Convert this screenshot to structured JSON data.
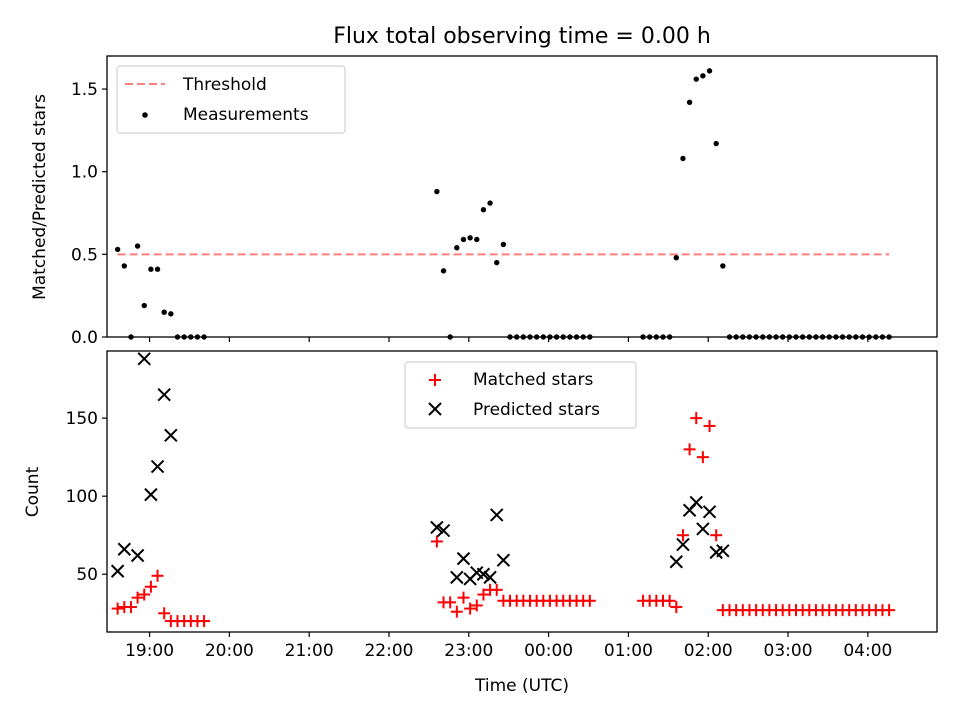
{
  "chart_data": [
    {
      "type": "scatter",
      "title": "Flux total observing time = 0.00 h",
      "xlabel": "",
      "ylabel": "Matched/Predicted stars",
      "ylim": [
        0,
        1.7
      ],
      "xlim": [
        "18:28",
        "04:52"
      ],
      "yticks": [
        0.0,
        0.5,
        1.0,
        1.5
      ],
      "ytick_labels": [
        "0.0",
        "0.5",
        "1.0",
        "1.5"
      ],
      "xticks": [
        "19:00",
        "20:00",
        "21:00",
        "22:00",
        "23:00",
        "00:00",
        "01:00",
        "02:00",
        "03:00",
        "04:00"
      ],
      "xtick_labels_visible": false,
      "grid": false,
      "legend_position": "upper-left",
      "threshold": {
        "name": "Threshold",
        "value": 0.5,
        "x_range": [
          "18:36",
          "04:16"
        ],
        "color": "#ff7f7f",
        "style": "dashed"
      },
      "series": [
        {
          "name": "Measurements",
          "color": "#000000",
          "marker": "dot",
          "points": [
            [
              "18:36",
              0.53
            ],
            [
              "18:41",
              0.43
            ],
            [
              "18:46",
              0.0
            ],
            [
              "18:51",
              0.55
            ],
            [
              "18:56",
              0.19
            ],
            [
              "19:01",
              0.41
            ],
            [
              "19:06",
              0.41
            ],
            [
              "19:11",
              0.15
            ],
            [
              "19:16",
              0.14
            ],
            [
              "19:21",
              0.0
            ],
            [
              "19:26",
              0.0
            ],
            [
              "19:31",
              0.0
            ],
            [
              "19:36",
              0.0
            ],
            [
              "19:41",
              0.0
            ],
            [
              "22:36",
              0.88
            ],
            [
              "22:41",
              0.4
            ],
            [
              "22:46",
              0.0
            ],
            [
              "22:51",
              0.54
            ],
            [
              "22:56",
              0.59
            ],
            [
              "23:01",
              0.6
            ],
            [
              "23:06",
              0.59
            ],
            [
              "23:11",
              0.77
            ],
            [
              "23:16",
              0.81
            ],
            [
              "23:21",
              0.45
            ],
            [
              "23:26",
              0.56
            ],
            [
              "23:31",
              0.0
            ],
            [
              "23:36",
              0.0
            ],
            [
              "23:41",
              0.0
            ],
            [
              "23:46",
              0.0
            ],
            [
              "23:51",
              0.0
            ],
            [
              "23:56",
              0.0
            ],
            [
              "00:01",
              0.0
            ],
            [
              "00:06",
              0.0
            ],
            [
              "00:11",
              0.0
            ],
            [
              "00:16",
              0.0
            ],
            [
              "00:21",
              0.0
            ],
            [
              "00:26",
              0.0
            ],
            [
              "00:31",
              0.0
            ],
            [
              "01:11",
              0.0
            ],
            [
              "01:16",
              0.0
            ],
            [
              "01:21",
              0.0
            ],
            [
              "01:26",
              0.0
            ],
            [
              "01:31",
              0.0
            ],
            [
              "01:36",
              0.48
            ],
            [
              "01:41",
              1.08
            ],
            [
              "01:46",
              1.42
            ],
            [
              "01:51",
              1.56
            ],
            [
              "01:56",
              1.58
            ],
            [
              "02:01",
              1.61
            ],
            [
              "02:06",
              1.17
            ],
            [
              "02:11",
              0.43
            ],
            [
              "02:16",
              0.0
            ],
            [
              "02:21",
              0.0
            ],
            [
              "02:26",
              0.0
            ],
            [
              "02:31",
              0.0
            ],
            [
              "02:36",
              0.0
            ],
            [
              "02:41",
              0.0
            ],
            [
              "02:46",
              0.0
            ],
            [
              "02:51",
              0.0
            ],
            [
              "02:56",
              0.0
            ],
            [
              "03:01",
              0.0
            ],
            [
              "03:06",
              0.0
            ],
            [
              "03:11",
              0.0
            ],
            [
              "03:16",
              0.0
            ],
            [
              "03:21",
              0.0
            ],
            [
              "03:26",
              0.0
            ],
            [
              "03:31",
              0.0
            ],
            [
              "03:36",
              0.0
            ],
            [
              "03:41",
              0.0
            ],
            [
              "03:46",
              0.0
            ],
            [
              "03:51",
              0.0
            ],
            [
              "03:56",
              0.0
            ],
            [
              "04:01",
              0.0
            ],
            [
              "04:06",
              0.0
            ],
            [
              "04:11",
              0.0
            ],
            [
              "04:16",
              0.0
            ]
          ]
        }
      ]
    },
    {
      "type": "scatter",
      "title": "",
      "xlabel": "Time (UTC)",
      "ylabel": "Count",
      "ylim": [
        13,
        193
      ],
      "xlim": [
        "18:28",
        "04:52"
      ],
      "yticks": [
        50,
        100,
        150
      ],
      "ytick_labels": [
        "50",
        "100",
        "150"
      ],
      "xticks": [
        "19:00",
        "20:00",
        "21:00",
        "22:00",
        "23:00",
        "00:00",
        "01:00",
        "02:00",
        "03:00",
        "04:00"
      ],
      "xtick_labels": [
        "19:00",
        "20:00",
        "21:00",
        "22:00",
        "23:00",
        "00:00",
        "01:00",
        "02:00",
        "03:00",
        "04:00"
      ],
      "grid": false,
      "legend_position": "upper-center",
      "series": [
        {
          "name": "Matched stars",
          "color": "#ff0000",
          "marker": "plus",
          "points": [
            [
              "18:36",
              28
            ],
            [
              "18:41",
              29
            ],
            [
              "18:46",
              29
            ],
            [
              "18:51",
              35
            ],
            [
              "18:56",
              37
            ],
            [
              "19:01",
              42
            ],
            [
              "19:06",
              49
            ],
            [
              "19:11",
              25
            ],
            [
              "19:16",
              20
            ],
            [
              "19:21",
              20
            ],
            [
              "19:26",
              20
            ],
            [
              "19:31",
              20
            ],
            [
              "19:36",
              20
            ],
            [
              "19:41",
              20
            ],
            [
              "22:36",
              71
            ],
            [
              "22:41",
              32
            ],
            [
              "22:46",
              32
            ],
            [
              "22:51",
              26
            ],
            [
              "22:56",
              35
            ],
            [
              "23:01",
              28
            ],
            [
              "23:06",
              30
            ],
            [
              "23:11",
              37
            ],
            [
              "23:16",
              40
            ],
            [
              "23:21",
              40
            ],
            [
              "23:26",
              33
            ],
            [
              "23:31",
              33
            ],
            [
              "23:36",
              33
            ],
            [
              "23:41",
              33
            ],
            [
              "23:46",
              33
            ],
            [
              "23:51",
              33
            ],
            [
              "23:56",
              33
            ],
            [
              "00:01",
              33
            ],
            [
              "00:06",
              33
            ],
            [
              "00:11",
              33
            ],
            [
              "00:16",
              33
            ],
            [
              "00:21",
              33
            ],
            [
              "00:26",
              33
            ],
            [
              "00:31",
              33
            ],
            [
              "01:11",
              33
            ],
            [
              "01:16",
              33
            ],
            [
              "01:21",
              33
            ],
            [
              "01:26",
              33
            ],
            [
              "01:31",
              33
            ],
            [
              "01:36",
              29
            ],
            [
              "01:41",
              75
            ],
            [
              "01:46",
              130
            ],
            [
              "01:51",
              150
            ],
            [
              "01:56",
              125
            ],
            [
              "02:01",
              145
            ],
            [
              "02:06",
              75
            ],
            [
              "02:11",
              27
            ],
            [
              "02:16",
              27
            ],
            [
              "02:21",
              27
            ],
            [
              "02:26",
              27
            ],
            [
              "02:31",
              27
            ],
            [
              "02:36",
              27
            ],
            [
              "02:41",
              27
            ],
            [
              "02:46",
              27
            ],
            [
              "02:51",
              27
            ],
            [
              "02:56",
              27
            ],
            [
              "03:01",
              27
            ],
            [
              "03:06",
              27
            ],
            [
              "03:11",
              27
            ],
            [
              "03:16",
              27
            ],
            [
              "03:21",
              27
            ],
            [
              "03:26",
              27
            ],
            [
              "03:31",
              27
            ],
            [
              "03:36",
              27
            ],
            [
              "03:41",
              27
            ],
            [
              "03:46",
              27
            ],
            [
              "03:51",
              27
            ],
            [
              "03:56",
              27
            ],
            [
              "04:01",
              27
            ],
            [
              "04:06",
              27
            ],
            [
              "04:11",
              27
            ],
            [
              "04:16",
              27
            ]
          ]
        },
        {
          "name": "Predicted stars",
          "color": "#000000",
          "marker": "x",
          "points": [
            [
              "18:36",
              52
            ],
            [
              "18:41",
              66
            ],
            [
              "18:51",
              62
            ],
            [
              "18:56",
              188
            ],
            [
              "19:01",
              101
            ],
            [
              "19:06",
              119
            ],
            [
              "19:11",
              165
            ],
            [
              "19:16",
              139
            ],
            [
              "22:36",
              80
            ],
            [
              "22:41",
              78
            ],
            [
              "22:51",
              48
            ],
            [
              "22:56",
              60
            ],
            [
              "23:01",
              47
            ],
            [
              "23:06",
              51
            ],
            [
              "23:11",
              50
            ],
            [
              "23:16",
              48
            ],
            [
              "23:21",
              88
            ],
            [
              "23:26",
              59
            ],
            [
              "01:36",
              58
            ],
            [
              "01:41",
              69
            ],
            [
              "01:46",
              91
            ],
            [
              "01:51",
              96
            ],
            [
              "01:56",
              79
            ],
            [
              "02:01",
              90
            ],
            [
              "02:06",
              64
            ],
            [
              "02:11",
              65
            ]
          ]
        }
      ]
    }
  ]
}
